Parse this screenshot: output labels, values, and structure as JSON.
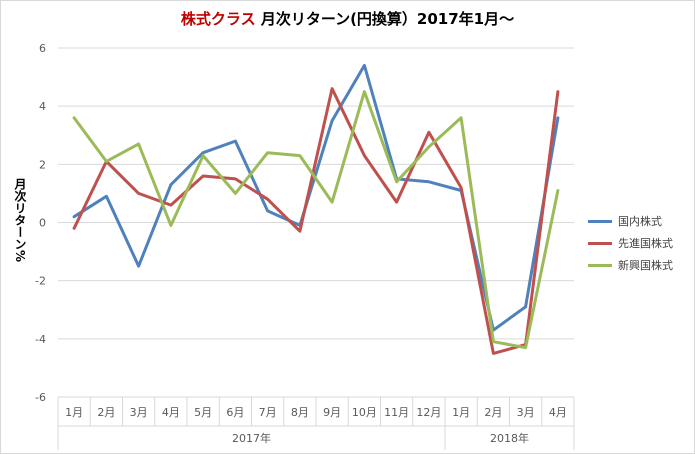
{
  "title": {
    "highlight": "株式クラス",
    "rest": "月次リターン(円換算）2017年1月～"
  },
  "chart_data": {
    "type": "line",
    "title": "株式クラス 月次リターン(円換算）2017年1月～",
    "ylabel": "月次リターン%",
    "xlabel": "",
    "ylim": [
      -6,
      6
    ],
    "yticks": [
      -6,
      -4,
      -2,
      0,
      2,
      4,
      6
    ],
    "grid": true,
    "legend_position": "right",
    "categories": [
      "1月",
      "2月",
      "3月",
      "4月",
      "5月",
      "6月",
      "7月",
      "8月",
      "9月",
      "10月",
      "11月",
      "12月",
      "1月",
      "2月",
      "3月",
      "4月"
    ],
    "year_groups": [
      {
        "label": "2017年",
        "count": 12
      },
      {
        "label": "2018年",
        "count": 4
      }
    ],
    "series": [
      {
        "name": "国内株式",
        "color": "#4f81bd",
        "values": [
          0.2,
          0.9,
          -1.5,
          1.3,
          2.4,
          2.8,
          0.4,
          -0.1,
          3.5,
          5.4,
          1.5,
          1.4,
          1.1,
          -3.7,
          -2.9,
          3.6
        ]
      },
      {
        "name": "先進国株式",
        "color": "#c0504d",
        "values": [
          -0.2,
          2.1,
          1.0,
          0.6,
          1.6,
          1.5,
          0.8,
          -0.3,
          4.6,
          2.3,
          0.7,
          3.1,
          1.2,
          -4.5,
          -4.2,
          4.5
        ]
      },
      {
        "name": "新興国株式",
        "color": "#9bbb59",
        "values": [
          3.6,
          2.1,
          2.7,
          -0.1,
          2.3,
          1.0,
          2.4,
          2.3,
          0.7,
          4.5,
          1.4,
          2.6,
          3.6,
          -4.1,
          -4.3,
          1.1
        ]
      }
    ]
  }
}
